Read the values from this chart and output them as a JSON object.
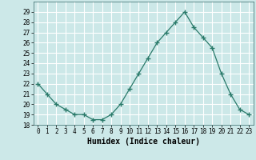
{
  "x": [
    0,
    1,
    2,
    3,
    4,
    5,
    6,
    7,
    8,
    9,
    10,
    11,
    12,
    13,
    14,
    15,
    16,
    17,
    18,
    19,
    20,
    21,
    22,
    23
  ],
  "y": [
    22,
    21,
    20,
    19.5,
    19,
    19,
    18.5,
    18.5,
    19,
    20,
    21.5,
    23,
    24.5,
    26,
    27,
    28,
    29,
    27.5,
    26.5,
    25.5,
    23,
    21,
    19.5,
    19
  ],
  "line_color": "#2a7a6a",
  "marker": "+",
  "marker_size": 4,
  "bg_color": "#cce8e8",
  "grid_color": "#ffffff",
  "xlabel": "Humidex (Indice chaleur)",
  "xlim": [
    -0.5,
    23.5
  ],
  "ylim": [
    18,
    30
  ],
  "yticks": [
    18,
    19,
    20,
    21,
    22,
    23,
    24,
    25,
    26,
    27,
    28,
    29
  ],
  "xticks": [
    0,
    1,
    2,
    3,
    4,
    5,
    6,
    7,
    8,
    9,
    10,
    11,
    12,
    13,
    14,
    15,
    16,
    17,
    18,
    19,
    20,
    21,
    22,
    23
  ],
  "tick_fontsize": 5.5,
  "xlabel_fontsize": 7
}
